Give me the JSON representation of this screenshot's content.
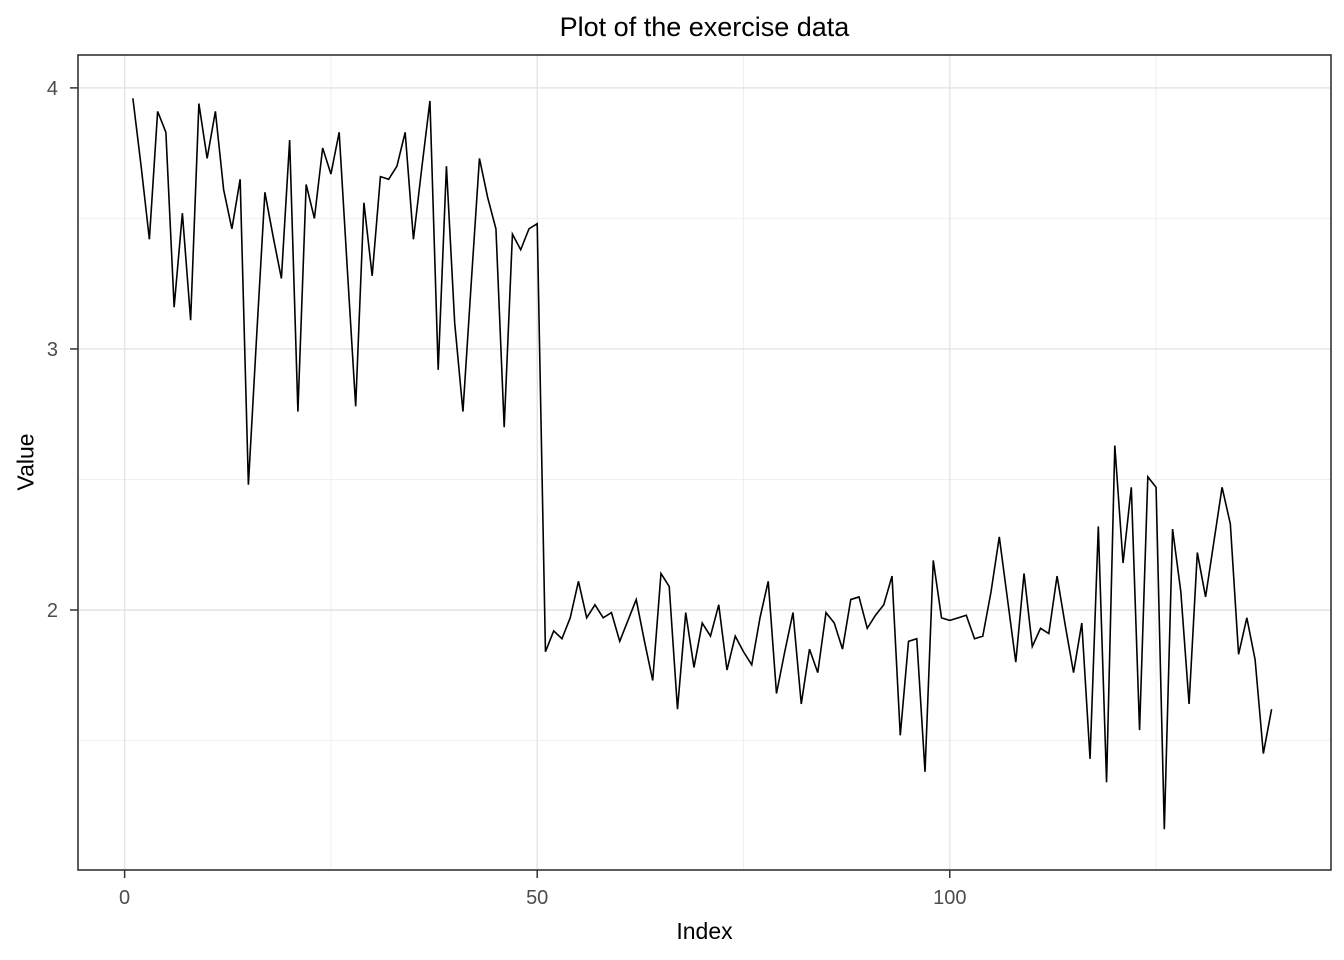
{
  "figure": {
    "title": "Plot of the exercise data",
    "xlabel": "Index",
    "ylabel": "Value"
  },
  "style": {
    "line_color": "#000000",
    "panel_border_color": "#333333",
    "grid_major_color": "#e4e4e4",
    "grid_minor_color": "#efefef",
    "tick_mark_color": "#333333",
    "tick_label_color": "#4d4d4d",
    "background": "#ffffff"
  },
  "chart_data": {
    "type": "line",
    "title": "Plot of the exercise data",
    "xlabel": "Index",
    "ylabel": "Value",
    "legend": false,
    "grid": true,
    "x_ticks": [
      0,
      50,
      100
    ],
    "x_minor_ticks": [
      25,
      75,
      125
    ],
    "y_ticks": [
      2,
      3,
      4
    ],
    "y_minor_ticks": [
      1.5,
      2.5,
      3.5
    ],
    "xlim": [
      -5.65,
      146.2
    ],
    "ylim": [
      1.004,
      4.126
    ],
    "x_start": 1,
    "values": [
      3.96,
      3.7,
      3.42,
      3.91,
      3.83,
      3.16,
      3.52,
      3.11,
      3.94,
      3.73,
      3.91,
      3.61,
      3.46,
      3.65,
      2.48,
      3.05,
      3.6,
      3.43,
      3.27,
      3.8,
      2.76,
      3.63,
      3.5,
      3.77,
      3.67,
      3.83,
      3.3,
      2.78,
      3.56,
      3.28,
      3.66,
      3.65,
      3.7,
      3.83,
      3.42,
      3.69,
      3.95,
      2.92,
      3.7,
      3.1,
      2.76,
      3.25,
      3.73,
      3.58,
      3.46,
      2.7,
      3.44,
      3.38,
      3.46,
      3.48,
      1.84,
      1.92,
      1.89,
      1.97,
      2.11,
      1.97,
      2.02,
      1.97,
      1.99,
      1.88,
      1.96,
      2.04,
      1.88,
      1.73,
      2.14,
      2.09,
      1.62,
      1.99,
      1.78,
      1.95,
      1.9,
      2.02,
      1.77,
      1.9,
      1.84,
      1.79,
      1.97,
      2.11,
      1.68,
      1.84,
      1.99,
      1.64,
      1.85,
      1.76,
      1.99,
      1.95,
      1.85,
      2.04,
      2.05,
      1.93,
      1.98,
      2.02,
      2.13,
      1.52,
      1.88,
      1.89,
      1.38,
      2.19,
      1.97,
      1.96,
      1.97,
      1.98,
      1.89,
      1.9,
      2.07,
      2.28,
      2.04,
      1.8,
      2.14,
      1.86,
      1.93,
      1.91,
      2.13,
      1.94,
      1.76,
      1.95,
      1.43,
      2.32,
      1.34,
      2.63,
      2.18,
      2.47,
      1.54,
      2.51,
      2.47,
      1.16,
      2.31,
      2.07,
      1.64,
      2.22,
      2.05,
      2.26,
      2.47,
      2.33,
      1.83,
      1.97,
      1.81,
      1.45,
      1.62
    ]
  }
}
